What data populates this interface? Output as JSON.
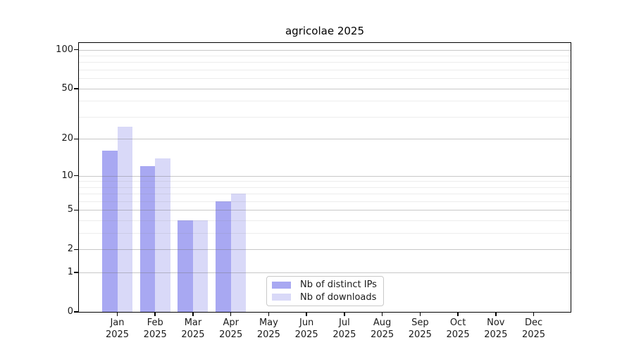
{
  "title": "agricolae 2025",
  "chart_data": {
    "type": "bar",
    "title": "agricolae 2025",
    "categories": [
      "Jan",
      "Feb",
      "Mar",
      "Apr",
      "May",
      "Jun",
      "Jul",
      "Aug",
      "Sep",
      "Oct",
      "Nov",
      "Dec"
    ],
    "category_year": "2025",
    "series": [
      {
        "name": "Nb of distinct IPs",
        "color": "#a8a8f2",
        "values": [
          16,
          12,
          4,
          6,
          null,
          null,
          null,
          null,
          null,
          null,
          null,
          null
        ]
      },
      {
        "name": "Nb of downloads",
        "color": "#d9d9f8",
        "values": [
          25,
          14,
          4,
          7,
          null,
          null,
          null,
          null,
          null,
          null,
          null,
          null
        ]
      }
    ],
    "yscale": "log10(value+1)",
    "y_major_ticks": [
      100,
      50,
      20,
      10,
      5,
      2,
      1,
      0
    ],
    "y_minor_gridlines": [
      3,
      4,
      6,
      7,
      8,
      9,
      30,
      40,
      60,
      70,
      80,
      90
    ],
    "ylim": [
      0,
      113
    ],
    "grid": true,
    "legend_position": "lower center"
  },
  "legend": {
    "entry_ips": "Nb of distinct IPs",
    "entry_downloads": "Nb of downloads"
  }
}
